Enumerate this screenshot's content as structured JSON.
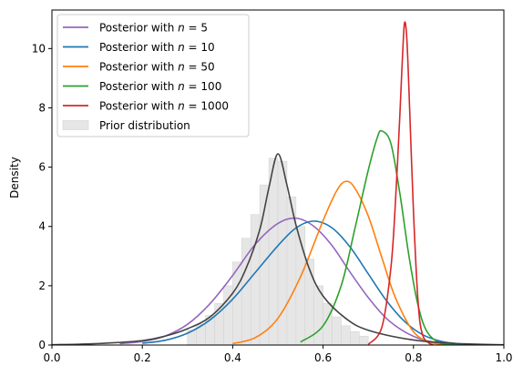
{
  "chart_data": {
    "type": "line",
    "title": "",
    "xlabel": "",
    "ylabel": "Density",
    "xlim": [
      0.0,
      1.0
    ],
    "ylim": [
      0.0,
      11.3
    ],
    "x_ticks": [
      "0.0",
      "0.2",
      "0.4",
      "0.6",
      "0.8",
      "1.0"
    ],
    "y_ticks": [
      "0",
      "2",
      "4",
      "6",
      "8",
      "10"
    ],
    "grid": false,
    "legend_position": "top-left",
    "series": [
      {
        "name": "Posterior with n = 5",
        "legend_prefix": "Posterior with ",
        "legend_var": "n",
        "legend_suffix": " = 5",
        "color": "#9467bd",
        "x": [
          0.15,
          0.2,
          0.25,
          0.3,
          0.35,
          0.4,
          0.45,
          0.5,
          0.54,
          0.58,
          0.62,
          0.66,
          0.7,
          0.74,
          0.78,
          0.82,
          0.86,
          0.9
        ],
        "y": [
          0.05,
          0.12,
          0.3,
          0.7,
          1.4,
          2.35,
          3.4,
          4.1,
          4.28,
          4.0,
          3.35,
          2.45,
          1.6,
          0.9,
          0.45,
          0.18,
          0.07,
          0.02
        ]
      },
      {
        "name": "Posterior with n = 10",
        "legend_prefix": "Posterior with ",
        "legend_var": "n",
        "legend_suffix": " = 10",
        "color": "#1f77b4",
        "x": [
          0.2,
          0.25,
          0.3,
          0.35,
          0.4,
          0.45,
          0.5,
          0.54,
          0.58,
          0.62,
          0.66,
          0.7,
          0.74,
          0.78,
          0.82,
          0.86,
          0.9,
          0.94
        ],
        "y": [
          0.06,
          0.16,
          0.4,
          0.85,
          1.55,
          2.45,
          3.35,
          3.95,
          4.18,
          3.95,
          3.3,
          2.4,
          1.5,
          0.8,
          0.35,
          0.13,
          0.04,
          0.01
        ]
      },
      {
        "name": "Posterior with n = 50",
        "legend_prefix": "Posterior with ",
        "legend_var": "n",
        "legend_suffix": " = 50",
        "color": "#ff7f0e",
        "x": [
          0.4,
          0.45,
          0.5,
          0.55,
          0.6,
          0.63,
          0.65,
          0.67,
          0.7,
          0.73,
          0.76,
          0.8,
          0.84,
          0.88
        ],
        "y": [
          0.05,
          0.25,
          0.9,
          2.3,
          4.2,
          5.2,
          5.52,
          5.3,
          4.35,
          2.95,
          1.6,
          0.45,
          0.08,
          0.01
        ]
      },
      {
        "name": "Posterior with n = 100",
        "legend_prefix": "Posterior with ",
        "legend_var": "n",
        "legend_suffix": " = 100",
        "color": "#2ca02c",
        "x": [
          0.55,
          0.6,
          0.64,
          0.67,
          0.7,
          0.72,
          0.73,
          0.75,
          0.77,
          0.79,
          0.81,
          0.83,
          0.86,
          0.9
        ],
        "y": [
          0.1,
          0.65,
          2.0,
          3.9,
          5.9,
          7.0,
          7.22,
          6.8,
          5.1,
          3.0,
          1.35,
          0.45,
          0.06,
          0.0
        ]
      },
      {
        "name": "Posterior with n = 1000",
        "legend_prefix": "Posterior with ",
        "legend_var": "n",
        "legend_suffix": " = 1000",
        "color": "#d62728",
        "x": [
          0.7,
          0.73,
          0.75,
          0.76,
          0.77,
          0.775,
          0.78,
          0.785,
          0.79,
          0.8,
          0.81,
          0.82,
          0.84,
          0.86
        ],
        "y": [
          0.02,
          0.6,
          2.6,
          4.8,
          7.8,
          9.5,
          10.85,
          10.4,
          8.6,
          4.5,
          1.5,
          0.35,
          0.02,
          0.0
        ]
      },
      {
        "name": "",
        "color": "#444444",
        "x": [
          0.0,
          0.1,
          0.2,
          0.25,
          0.3,
          0.35,
          0.4,
          0.43,
          0.46,
          0.48,
          0.5,
          0.52,
          0.54,
          0.57,
          0.6,
          0.65,
          0.7,
          0.8,
          0.9,
          1.0
        ],
        "y": [
          0.01,
          0.05,
          0.15,
          0.3,
          0.55,
          0.95,
          1.75,
          2.6,
          3.9,
          5.3,
          6.45,
          5.4,
          4.05,
          2.55,
          1.65,
          0.9,
          0.5,
          0.17,
          0.05,
          0.01
        ]
      }
    ],
    "prior_histogram": {
      "name": "Prior distribution",
      "color": "#e6e6e6",
      "bin_edges": [
        0.3,
        0.32,
        0.34,
        0.36,
        0.38,
        0.4,
        0.42,
        0.44,
        0.46,
        0.48,
        0.5,
        0.52,
        0.54,
        0.56,
        0.58,
        0.6,
        0.62,
        0.64,
        0.66,
        0.68,
        0.7
      ],
      "values": [
        0.5,
        0.7,
        1.0,
        1.4,
        2.0,
        2.8,
        3.6,
        4.4,
        5.4,
        6.3,
        6.2,
        5.0,
        4.0,
        2.9,
        2.0,
        1.4,
        0.95,
        0.65,
        0.45,
        0.3
      ]
    }
  }
}
